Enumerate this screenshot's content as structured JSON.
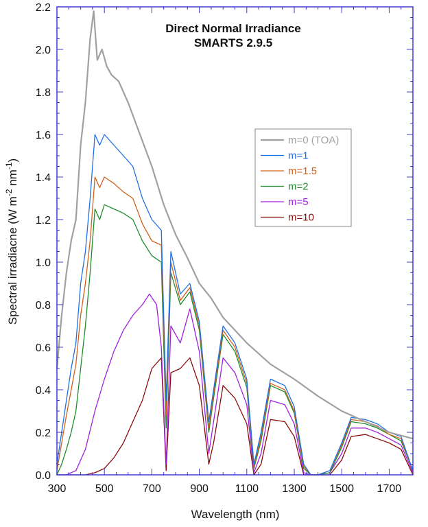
{
  "chart_data": {
    "type": "line",
    "title": "Direct Normal Irradiance",
    "subtitle": "SMARTS 2.9.5",
    "xlabel": "Wavelength (nm)",
    "ylabel_parts": {
      "main": "Spectral irradiacne (W m",
      "exp1": "-2",
      "mid": " nm",
      "exp2": "-1",
      "close": ")"
    },
    "xlim": [
      300,
      1800
    ],
    "ylim": [
      0,
      2.2
    ],
    "xticks": [
      300,
      500,
      700,
      900,
      1100,
      1300,
      1500,
      1700
    ],
    "xtick_labels": [
      "300",
      "500",
      "700",
      "900",
      "1100",
      "1300",
      "1500",
      "1700"
    ],
    "yticks": [
      0,
      0.2,
      0.4,
      0.6,
      0.8,
      1.0,
      1.2,
      1.4,
      1.6,
      1.8,
      2.0,
      2.2
    ],
    "ytick_labels": [
      "0.0",
      "0.2",
      "0.4",
      "0.6",
      "0.8",
      "1.0",
      "1.2",
      "1.4",
      "1.6",
      "1.8",
      "2.0",
      "2.2"
    ],
    "grid": false,
    "legend_position": "right",
    "series": [
      {
        "name": "m=0 (TOA)",
        "color": "#a0a0a0",
        "x": [
          300,
          320,
          340,
          360,
          380,
          400,
          420,
          440,
          455,
          470,
          490,
          510,
          530,
          560,
          600,
          650,
          700,
          750,
          800,
          850,
          900,
          950,
          1000,
          1100,
          1200,
          1300,
          1400,
          1500,
          1600,
          1700,
          1800
        ],
        "y": [
          0.5,
          0.75,
          0.95,
          1.1,
          1.2,
          1.55,
          1.75,
          2.05,
          2.18,
          1.95,
          2.0,
          1.92,
          1.88,
          1.85,
          1.75,
          1.6,
          1.45,
          1.27,
          1.13,
          1.02,
          0.9,
          0.83,
          0.74,
          0.62,
          0.52,
          0.45,
          0.37,
          0.3,
          0.25,
          0.2,
          0.17
        ]
      },
      {
        "name": "m=1",
        "color": "#1f6fe6",
        "x": [
          300,
          320,
          340,
          360,
          380,
          400,
          420,
          440,
          460,
          480,
          500,
          540,
          580,
          620,
          660,
          700,
          740,
          760,
          780,
          820,
          860,
          900,
          940,
          960,
          1000,
          1050,
          1100,
          1130,
          1160,
          1200,
          1260,
          1300,
          1340,
          1370,
          1400,
          1450,
          1500,
          1540,
          1600,
          1650,
          1700,
          1750,
          1800
        ],
        "y": [
          0.05,
          0.2,
          0.35,
          0.5,
          0.62,
          0.9,
          1.05,
          1.3,
          1.6,
          1.55,
          1.6,
          1.55,
          1.5,
          1.45,
          1.3,
          1.2,
          1.15,
          0.35,
          1.05,
          0.85,
          0.9,
          0.72,
          0.25,
          0.4,
          0.7,
          0.62,
          0.45,
          0.05,
          0.2,
          0.45,
          0.42,
          0.32,
          0.05,
          0.0,
          0.0,
          0.02,
          0.15,
          0.27,
          0.26,
          0.24,
          0.2,
          0.18,
          0.02
        ]
      },
      {
        "name": "m=1.5",
        "color": "#d0601a",
        "x": [
          300,
          320,
          340,
          360,
          380,
          400,
          420,
          440,
          460,
          480,
          500,
          540,
          580,
          620,
          660,
          700,
          740,
          760,
          780,
          820,
          860,
          900,
          940,
          960,
          1000,
          1050,
          1100,
          1130,
          1160,
          1200,
          1260,
          1300,
          1340,
          1370,
          1400,
          1450,
          1500,
          1540,
          1600,
          1650,
          1700,
          1750,
          1800
        ],
        "y": [
          0.02,
          0.15,
          0.28,
          0.4,
          0.52,
          0.75,
          0.9,
          1.1,
          1.4,
          1.35,
          1.4,
          1.37,
          1.33,
          1.3,
          1.18,
          1.1,
          1.08,
          0.28,
          1.0,
          0.82,
          0.88,
          0.7,
          0.22,
          0.38,
          0.68,
          0.6,
          0.43,
          0.04,
          0.18,
          0.43,
          0.4,
          0.3,
          0.04,
          0.0,
          0.0,
          0.02,
          0.14,
          0.26,
          0.25,
          0.23,
          0.19,
          0.17,
          0.02
        ]
      },
      {
        "name": "m=2",
        "color": "#1e8c2a",
        "x": [
          300,
          320,
          340,
          360,
          380,
          400,
          420,
          440,
          460,
          480,
          500,
          540,
          580,
          620,
          660,
          700,
          740,
          760,
          780,
          820,
          860,
          900,
          940,
          960,
          1000,
          1050,
          1100,
          1130,
          1160,
          1200,
          1260,
          1300,
          1340,
          1370,
          1400,
          1450,
          1500,
          1540,
          1600,
          1650,
          1700,
          1750,
          1800
        ],
        "y": [
          0.0,
          0.05,
          0.12,
          0.2,
          0.3,
          0.5,
          0.7,
          0.95,
          1.25,
          1.2,
          1.27,
          1.25,
          1.23,
          1.2,
          1.1,
          1.03,
          1.0,
          0.22,
          0.95,
          0.8,
          0.86,
          0.68,
          0.2,
          0.36,
          0.66,
          0.58,
          0.41,
          0.03,
          0.16,
          0.42,
          0.39,
          0.29,
          0.03,
          0.0,
          0.0,
          0.01,
          0.13,
          0.25,
          0.24,
          0.22,
          0.19,
          0.16,
          0.02
        ]
      },
      {
        "name": "m=5",
        "color": "#a020e0",
        "x": [
          300,
          340,
          380,
          420,
          460,
          500,
          540,
          580,
          620,
          660,
          690,
          720,
          740,
          760,
          780,
          820,
          860,
          900,
          940,
          960,
          1000,
          1050,
          1100,
          1130,
          1160,
          1200,
          1260,
          1300,
          1340,
          1370,
          1400,
          1450,
          1500,
          1540,
          1600,
          1650,
          1700,
          1750,
          1800
        ],
        "y": [
          0.0,
          0.0,
          0.02,
          0.12,
          0.3,
          0.45,
          0.58,
          0.68,
          0.75,
          0.8,
          0.85,
          0.8,
          0.6,
          0.05,
          0.7,
          0.62,
          0.78,
          0.58,
          0.1,
          0.25,
          0.55,
          0.48,
          0.33,
          0.01,
          0.1,
          0.35,
          0.33,
          0.24,
          0.01,
          0.0,
          0.0,
          0.01,
          0.1,
          0.22,
          0.22,
          0.2,
          0.17,
          0.14,
          0.01
        ]
      },
      {
        "name": "m=10",
        "color": "#8b0a0a",
        "x": [
          300,
          340,
          380,
          420,
          460,
          500,
          540,
          580,
          620,
          660,
          700,
          740,
          760,
          780,
          820,
          860,
          900,
          940,
          960,
          1000,
          1050,
          1100,
          1130,
          1160,
          1200,
          1260,
          1300,
          1340,
          1370,
          1400,
          1450,
          1500,
          1540,
          1600,
          1650,
          1700,
          1750,
          1800
        ],
        "y": [
          0.0,
          0.0,
          0.0,
          0.0,
          0.01,
          0.03,
          0.08,
          0.15,
          0.25,
          0.35,
          0.5,
          0.55,
          0.02,
          0.48,
          0.5,
          0.55,
          0.42,
          0.05,
          0.15,
          0.42,
          0.36,
          0.24,
          0.0,
          0.05,
          0.26,
          0.25,
          0.18,
          0.0,
          0.0,
          0.0,
          0.0,
          0.07,
          0.18,
          0.19,
          0.17,
          0.15,
          0.12,
          0.0
        ]
      }
    ]
  }
}
